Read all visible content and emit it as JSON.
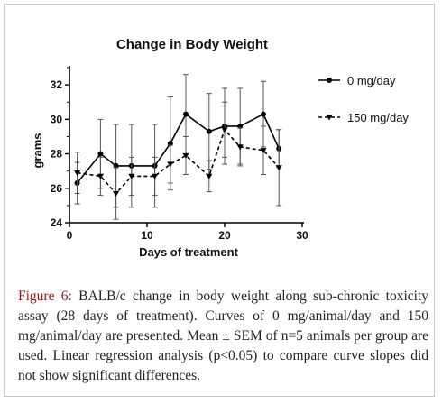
{
  "chart_data": {
    "type": "line",
    "title": "Change in Body Weight",
    "xlabel": "Days of treatment",
    "ylabel": "grams",
    "xlim": [
      0,
      30
    ],
    "ylim": [
      24,
      33
    ],
    "xticks": [
      0,
      10,
      20,
      30
    ],
    "yticks": [
      24,
      26,
      28,
      30,
      32
    ],
    "grid": false,
    "legend_position": "right",
    "series": [
      {
        "name": "0 mg/day",
        "style": "solid",
        "marker": "circle",
        "color": "#000000",
        "x": [
          1,
          4,
          6,
          8,
          11,
          13,
          15,
          18,
          20,
          22,
          25,
          27
        ],
        "y": [
          26.3,
          28.0,
          27.3,
          27.3,
          27.3,
          28.6,
          30.3,
          29.3,
          29.6,
          29.6,
          30.3,
          28.3
        ],
        "err": [
          1.2,
          2.0,
          2.4,
          2.4,
          2.4,
          2.7,
          2.3,
          2.2,
          2.2,
          2.2,
          1.9,
          1.1
        ]
      },
      {
        "name": "150 mg/day",
        "style": "dashed",
        "marker": "triangle-down",
        "color": "#000000",
        "x": [
          1,
          4,
          6,
          8,
          11,
          13,
          15,
          18,
          20,
          22,
          25,
          27
        ],
        "y": [
          26.9,
          26.7,
          25.7,
          26.7,
          26.7,
          27.4,
          27.9,
          26.7,
          29.4,
          28.4,
          28.2,
          27.2
        ],
        "err": [
          1.2,
          1.1,
          1.5,
          1.1,
          1.1,
          1.1,
          1.1,
          0.9,
          1.6,
          1.1,
          1.4,
          2.2
        ]
      }
    ]
  },
  "caption": {
    "label": "Figure 6:",
    "text": " BALB/c change in body weight along sub-chronic toxicity assay (28 days of treatment). Curves of 0 mg/animal/day and 150 mg/animal/day are presented. Mean ± SEM of n=5 animals per group are used. Linear regression analysis (p<0.05) to compare curve slopes did not show significant differences."
  }
}
